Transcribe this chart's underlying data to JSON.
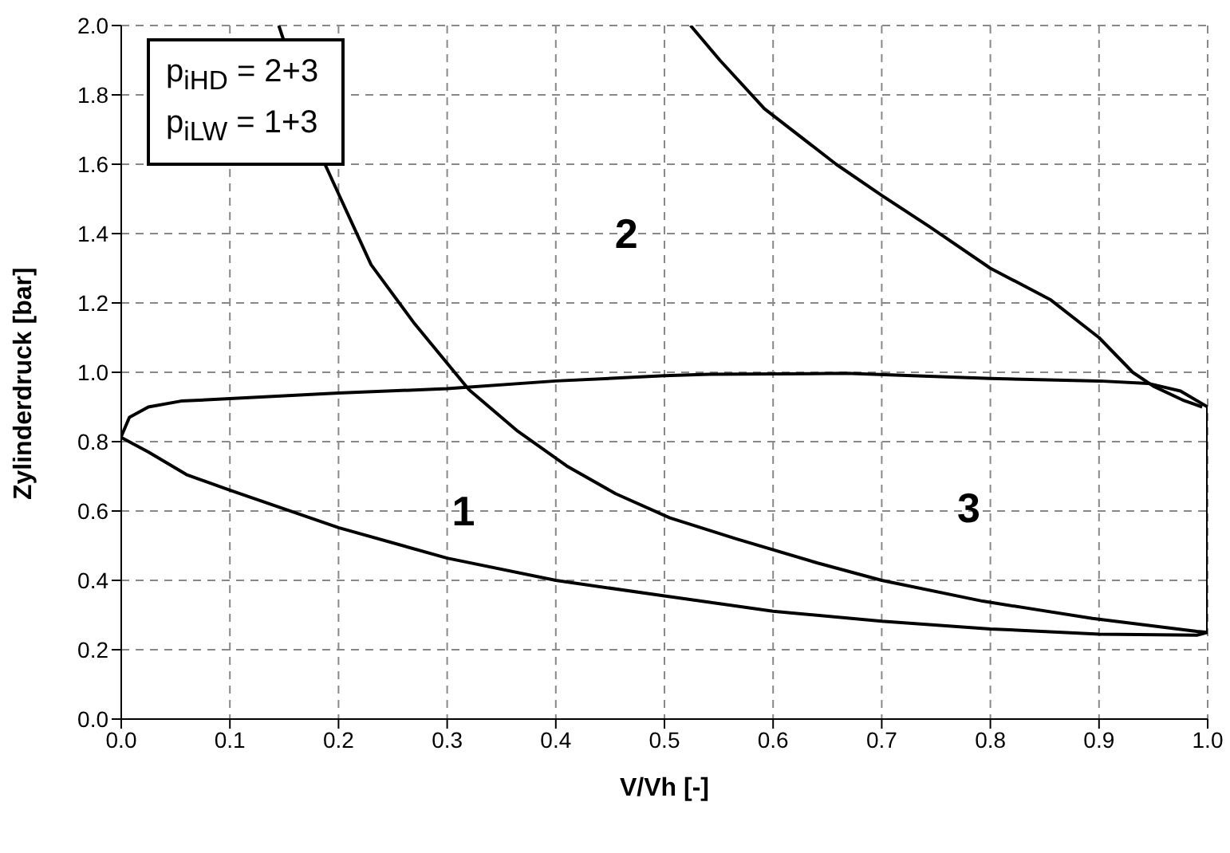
{
  "chart_data": {
    "type": "line",
    "xlabel": "V/Vh [-]",
    "ylabel": "Zylinderdruck [bar]",
    "xlim": [
      0,
      1
    ],
    "ylim": [
      0,
      2
    ],
    "xticks": [
      {
        "value": 0,
        "label": "0.0"
      },
      0.1,
      0.2,
      0.3,
      0.4,
      0.5,
      0.6,
      0.7,
      0.8,
      0.9,
      {
        "value": 1,
        "label": "1.0"
      }
    ],
    "yticks": [
      {
        "value": 0,
        "label": "0.0"
      },
      0.2,
      0.4,
      0.6,
      0.8,
      {
        "value": 1,
        "label": "1.0"
      },
      1.2,
      1.4,
      1.6,
      1.8,
      {
        "value": 2,
        "label": "2.0"
      }
    ],
    "grid": true,
    "marker": "none",
    "line_style": "solid",
    "series": [
      {
        "color": "#000000",
        "x": [
          0.145,
          0.1875,
          0.23,
          0.27,
          0.32,
          0.365,
          0.41,
          0.455,
          0.505,
          0.566,
          0.641,
          0.7,
          0.793,
          0.894,
          0.99,
          1.0
        ],
        "values": [
          2.0,
          1.6,
          1.31,
          1.14,
          0.95,
          0.83,
          0.73,
          0.65,
          0.58,
          0.52,
          0.45,
          0.4,
          0.34,
          0.29,
          0.253,
          0.25
        ]
      },
      {
        "color": "#000000",
        "x": [
          0.524,
          0.551,
          0.592,
          0.658,
          0.7,
          0.744,
          0.8,
          0.855,
          0.9,
          0.931,
          0.95,
          0.977,
          0.995
        ],
        "values": [
          2.0,
          1.9,
          1.76,
          1.6,
          1.51,
          1.42,
          1.3,
          1.21,
          1.1,
          1.0,
          0.96,
          0.92,
          0.9
        ]
      },
      {
        "color": "#000000",
        "x": [
          0,
          0.0075,
          0.025,
          0.055,
          0.1,
          0.2,
          0.3,
          0.4,
          0.5,
          0.541,
          0.667,
          0.8,
          0.9,
          0.945,
          0.975,
          1.0,
          1.0,
          0.99,
          0.9,
          0.8,
          0.7,
          0.6,
          0.5,
          0.4,
          0.3,
          0.2,
          0.1,
          0.06,
          0.025,
          0
        ],
        "values": [
          0.815,
          0.87,
          0.9,
          0.917,
          0.924,
          0.94,
          0.953,
          0.975,
          0.99,
          0.994,
          0.997,
          0.982,
          0.975,
          0.968,
          0.946,
          0.9,
          0.25,
          0.242,
          0.245,
          0.26,
          0.282,
          0.311,
          0.355,
          0.4,
          0.464,
          0.552,
          0.66,
          0.705,
          0.77,
          0.812
        ]
      }
    ],
    "annotations": [
      "1",
      "2",
      "3",
      "p$_{iHD}$ = 2+3",
      "p$_{iLW}$ = 1+3"
    ]
  }
}
